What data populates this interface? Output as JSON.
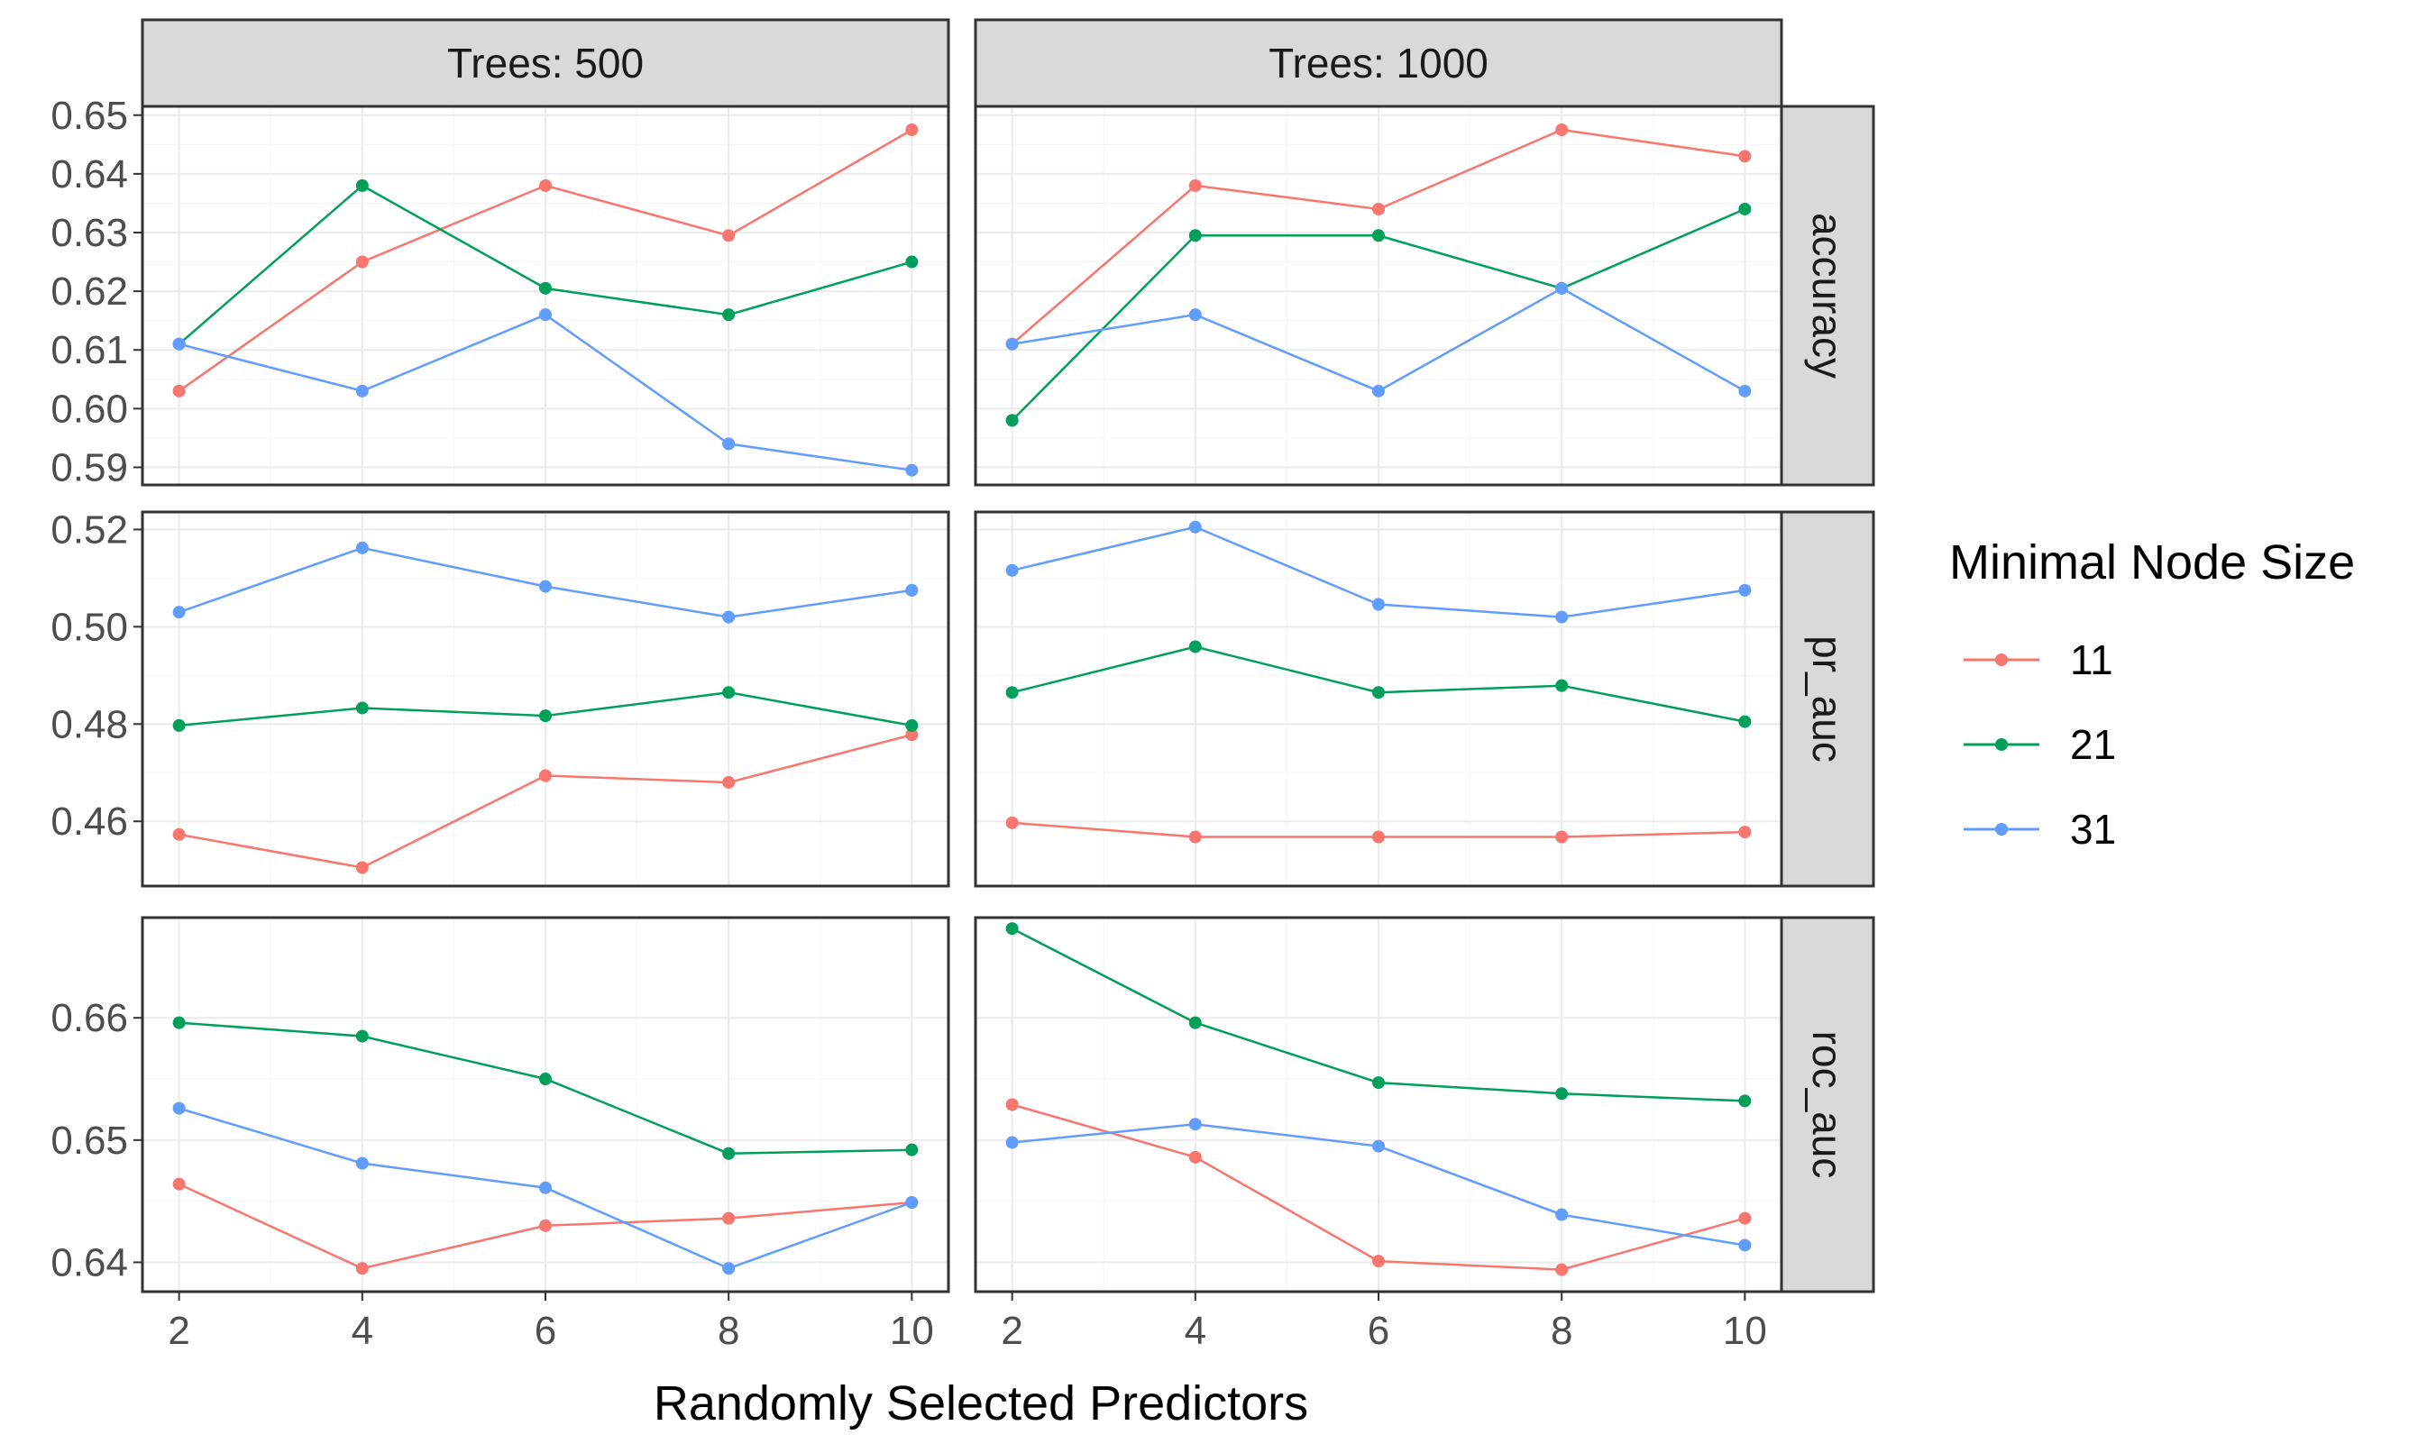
{
  "chart_data": {
    "type": "line",
    "xlabel": "Randomly Selected Predictors",
    "x": [
      2,
      4,
      6,
      8,
      10
    ],
    "col_facets": [
      "Trees: 500",
      "Trees: 1000"
    ],
    "row_facets": [
      "accuracy",
      "pr_auc",
      "roc_auc"
    ],
    "legend": {
      "title": "Minimal Node Size",
      "placement": "right",
      "entries": [
        {
          "name": "11",
          "color": "#F8766D"
        },
        {
          "name": "21",
          "color": "#00A05A"
        },
        {
          "name": "31",
          "color": "#619CFF"
        }
      ]
    },
    "rows": [
      {
        "metric": "accuracy",
        "ylim": [
          0.587,
          0.6515
        ],
        "yticks": [
          0.59,
          0.6,
          0.61,
          0.62,
          0.63,
          0.64,
          0.65
        ],
        "ytick_labels": [
          "0.59",
          "0.60",
          "0.61",
          "0.62",
          "0.63",
          "0.64",
          "0.65"
        ],
        "panels": [
          {
            "trees": "Trees: 500",
            "series": [
              {
                "name": "11",
                "values": [
                  0.603,
                  0.625,
                  0.638,
                  0.6295,
                  0.6475
                ]
              },
              {
                "name": "21",
                "values": [
                  0.611,
                  0.638,
                  0.6205,
                  0.616,
                  0.625
                ]
              },
              {
                "name": "31",
                "values": [
                  0.611,
                  0.603,
                  0.616,
                  0.594,
                  0.5895
                ]
              }
            ]
          },
          {
            "trees": "Trees: 1000",
            "series": [
              {
                "name": "11",
                "values": [
                  0.611,
                  0.638,
                  0.634,
                  0.6475,
                  0.643
                ]
              },
              {
                "name": "21",
                "values": [
                  0.598,
                  0.6295,
                  0.6295,
                  0.6205,
                  0.634
                ]
              },
              {
                "name": "31",
                "values": [
                  0.611,
                  0.616,
                  0.603,
                  0.6205,
                  0.603
                ]
              }
            ]
          }
        ]
      },
      {
        "metric": "pr_auc",
        "ylim": [
          0.4467,
          0.5236
        ],
        "yticks": [
          0.46,
          0.48,
          0.5,
          0.52
        ],
        "ytick_labels": [
          "0.46",
          "0.48",
          "0.50",
          "0.52"
        ],
        "panels": [
          {
            "trees": "Trees: 500",
            "series": [
              {
                "name": "11",
                "values": [
                  0.4573,
                  0.4505,
                  0.4694,
                  0.468,
                  0.4778
                ]
              },
              {
                "name": "21",
                "values": [
                  0.4797,
                  0.4833,
                  0.4817,
                  0.4865,
                  0.4797
                ]
              },
              {
                "name": "31",
                "values": [
                  0.503,
                  0.5162,
                  0.5083,
                  0.502,
                  0.5075
                ]
              }
            ]
          },
          {
            "trees": "Trees: 1000",
            "series": [
              {
                "name": "11",
                "values": [
                  0.4597,
                  0.4568,
                  0.4568,
                  0.4568,
                  0.4578
                ]
              },
              {
                "name": "21",
                "values": [
                  0.4865,
                  0.4959,
                  0.4865,
                  0.4879,
                  0.4805
                ]
              },
              {
                "name": "31",
                "values": [
                  0.5116,
                  0.5205,
                  0.5046,
                  0.502,
                  0.5075
                ]
              }
            ]
          }
        ]
      },
      {
        "metric": "roc_auc",
        "ylim": [
          0.6376,
          0.6682
        ],
        "yticks": [
          0.64,
          0.65,
          0.66
        ],
        "ytick_labels": [
          "0.64",
          "0.65",
          "0.66"
        ],
        "panels": [
          {
            "trees": "Trees: 500",
            "series": [
              {
                "name": "11",
                "values": [
                  0.6464,
                  0.6395,
                  0.643,
                  0.6436,
                  0.6449
                ]
              },
              {
                "name": "21",
                "values": [
                  0.6596,
                  0.6585,
                  0.655,
                  0.6489,
                  0.6492
                ]
              },
              {
                "name": "31",
                "values": [
                  0.6526,
                  0.6481,
                  0.6461,
                  0.6395,
                  0.6449
                ]
              }
            ]
          },
          {
            "trees": "Trees: 1000",
            "series": [
              {
                "name": "11",
                "values": [
                  0.6529,
                  0.6486,
                  0.6401,
                  0.6394,
                  0.6436
                ]
              },
              {
                "name": "21",
                "values": [
                  0.6673,
                  0.6596,
                  0.6547,
                  0.6538,
                  0.6532
                ]
              },
              {
                "name": "31",
                "values": [
                  0.6498,
                  0.6513,
                  0.6495,
                  0.6439,
                  0.6414
                ]
              }
            ]
          }
        ]
      }
    ]
  }
}
